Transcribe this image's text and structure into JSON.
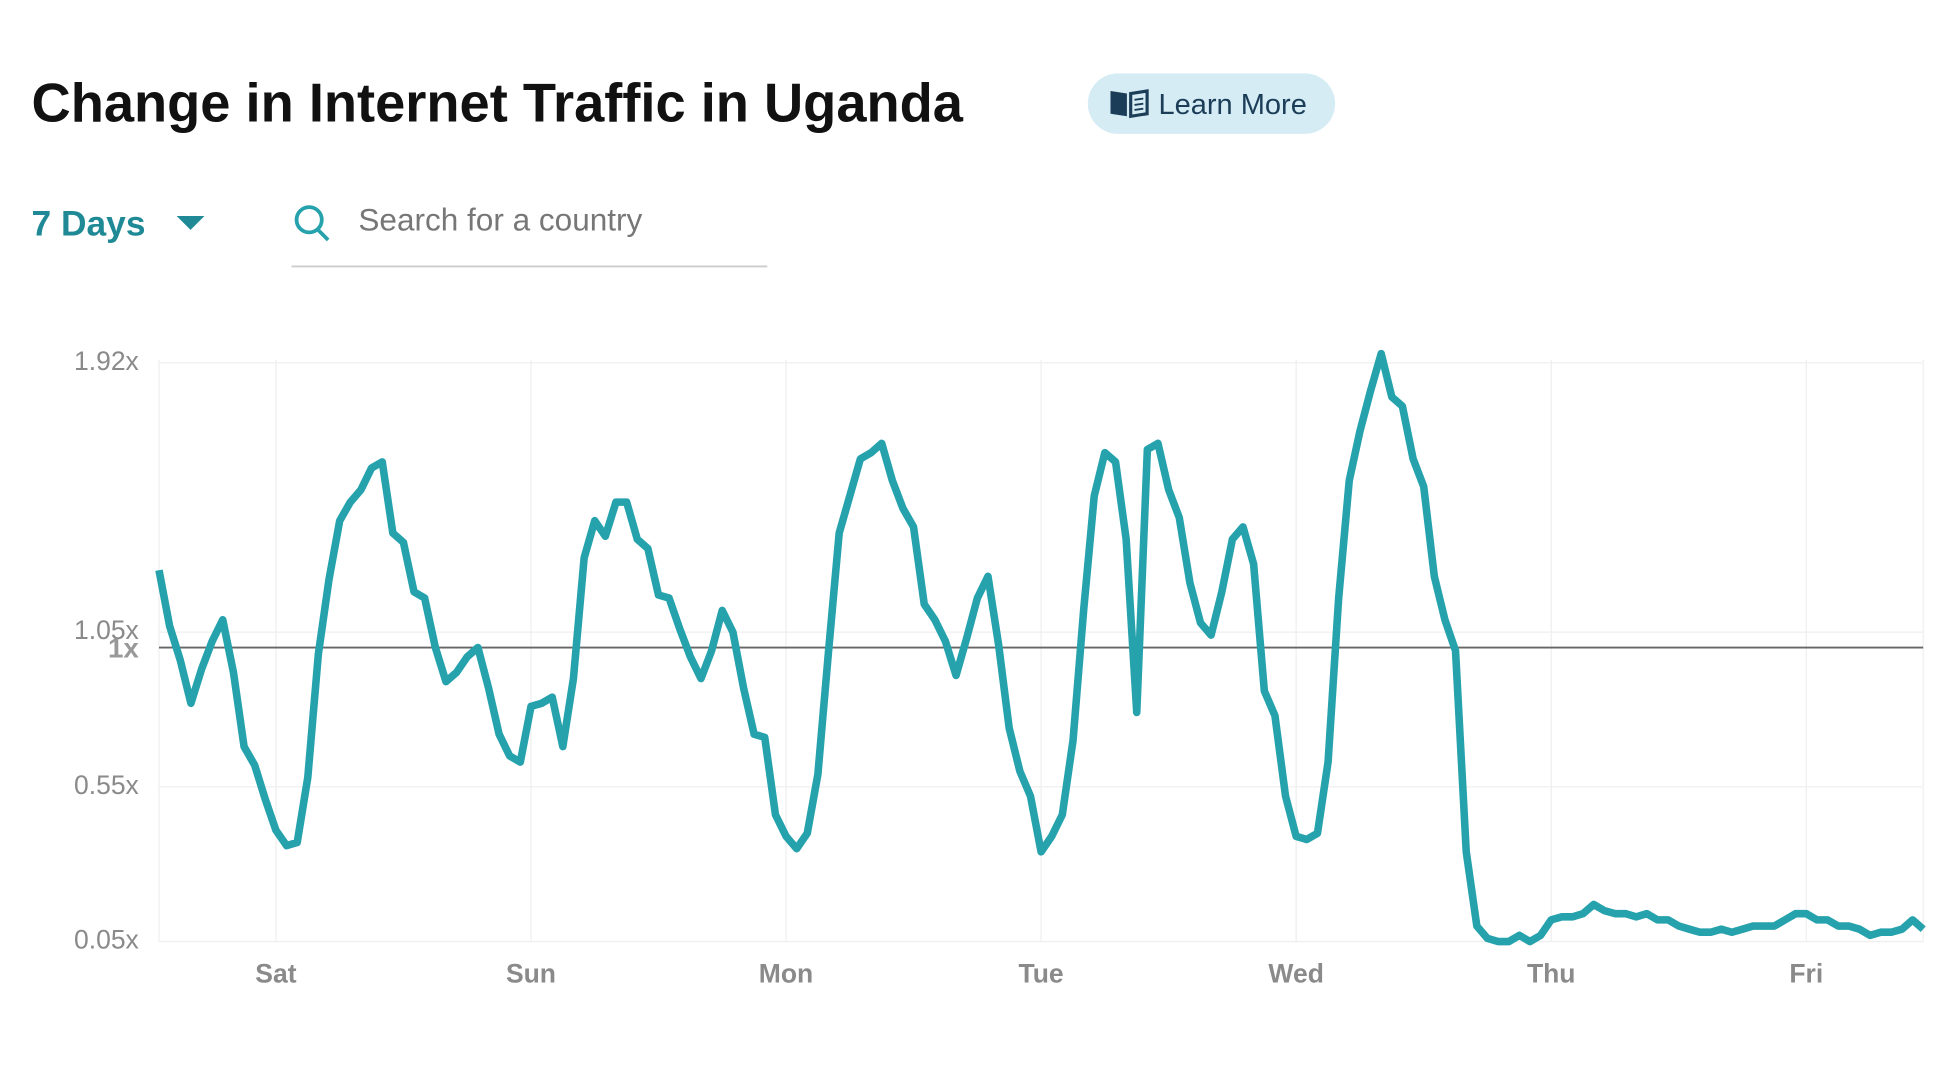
{
  "header": {
    "title": "Change in Internet Traffic in Uganda",
    "learn_more": "Learn More",
    "range": "7 Days",
    "search_placeholder": "Search for a country"
  },
  "chart_data": {
    "type": "line",
    "color": "#26a2ad",
    "grid": true,
    "reference_line": {
      "value": 1,
      "label": "1x"
    },
    "xlim": [
      0,
      166
    ],
    "xticks": [
      {
        "value": 11,
        "label": "Sat"
      },
      {
        "value": 35,
        "label": "Sun"
      },
      {
        "value": 59,
        "label": "Mon"
      },
      {
        "value": 83,
        "label": "Tue"
      },
      {
        "value": 107,
        "label": "Wed"
      },
      {
        "value": 131,
        "label": "Thu"
      },
      {
        "value": 155,
        "label": "Fri"
      }
    ],
    "ylim": [
      0.05,
      1.93
    ],
    "yticks": [
      {
        "value": 0.05,
        "label": "0.05x"
      },
      {
        "value": 0.55,
        "label": "0.55x"
      },
      {
        "value": 1.05,
        "label": "1.05x"
      },
      {
        "value": 1.92,
        "label": "1.92x"
      }
    ],
    "x": [
      0,
      1,
      2,
      3,
      4,
      5,
      6,
      7,
      8,
      9,
      10,
      11,
      12,
      13,
      14,
      15,
      16,
      17,
      18,
      19,
      20,
      21,
      22,
      23,
      24,
      25,
      26,
      27,
      28,
      29,
      30,
      31,
      32,
      33,
      34,
      35,
      36,
      37,
      38,
      39,
      40,
      41,
      42,
      43,
      44,
      45,
      46,
      47,
      48,
      49,
      50,
      51,
      52,
      53,
      54,
      55,
      56,
      57,
      58,
      59,
      60,
      61,
      62,
      63,
      64,
      65,
      66,
      67,
      68,
      69,
      70,
      71,
      72,
      73,
      74,
      75,
      76,
      77,
      78,
      79,
      80,
      81,
      82,
      83,
      84,
      85,
      86,
      87,
      88,
      89,
      90,
      91,
      92,
      93,
      94,
      95,
      96,
      97,
      98,
      99,
      100,
      101,
      102,
      103,
      104,
      105,
      106,
      107,
      108,
      109,
      110,
      111,
      112,
      113,
      114,
      115,
      116,
      117,
      118,
      119,
      120,
      121,
      122,
      123,
      124,
      125,
      126,
      127,
      128,
      129,
      130,
      131,
      132,
      133,
      134,
      135,
      136,
      137,
      138,
      139,
      140,
      141,
      142,
      143,
      144,
      145,
      146,
      147,
      148,
      149,
      150,
      151,
      152,
      153,
      154,
      155,
      156,
      157,
      158,
      159,
      160,
      161,
      162,
      163,
      164,
      165,
      166
    ],
    "values": [
      1.25,
      1.07,
      0.96,
      0.82,
      0.93,
      1.02,
      1.09,
      0.92,
      0.68,
      0.62,
      0.51,
      0.41,
      0.36,
      0.37,
      0.58,
      0.98,
      1.22,
      1.41,
      1.47,
      1.51,
      1.58,
      1.6,
      1.37,
      1.34,
      1.18,
      1.16,
      1.0,
      0.89,
      0.92,
      0.97,
      1.0,
      0.87,
      0.72,
      0.65,
      0.63,
      0.81,
      0.82,
      0.84,
      0.68,
      0.9,
      1.29,
      1.41,
      1.36,
      1.47,
      1.47,
      1.35,
      1.32,
      1.17,
      1.16,
      1.06,
      0.97,
      0.9,
      0.99,
      1.12,
      1.05,
      0.87,
      0.72,
      0.71,
      0.46,
      0.39,
      0.35,
      0.4,
      0.59,
      0.99,
      1.37,
      1.49,
      1.61,
      1.63,
      1.66,
      1.54,
      1.45,
      1.39,
      1.14,
      1.09,
      1.02,
      0.91,
      1.03,
      1.16,
      1.23,
      1.01,
      0.74,
      0.6,
      0.52,
      0.34,
      0.39,
      0.46,
      0.7,
      1.12,
      1.49,
      1.63,
      1.6,
      1.35,
      0.79,
      1.64,
      1.66,
      1.51,
      1.42,
      1.21,
      1.08,
      1.04,
      1.18,
      1.35,
      1.39,
      1.27,
      0.86,
      0.78,
      0.52,
      0.39,
      0.38,
      0.4,
      0.63,
      1.16,
      1.54,
      1.7,
      1.83,
      1.95,
      1.81,
      1.78,
      1.61,
      1.52,
      1.23,
      1.09,
      0.99,
      0.34,
      0.1,
      0.06,
      0.05,
      0.05,
      0.07,
      0.05,
      0.07,
      0.12,
      0.13,
      0.13,
      0.14,
      0.17,
      0.15,
      0.14,
      0.14,
      0.13,
      0.14,
      0.12,
      0.12,
      0.1,
      0.09,
      0.08,
      0.08,
      0.09,
      0.08,
      0.09,
      0.1,
      0.1,
      0.1,
      0.12,
      0.14,
      0.14,
      0.12,
      0.12,
      0.1,
      0.1,
      0.09,
      0.07,
      0.08,
      0.08,
      0.09,
      0.12,
      0.09
    ]
  }
}
